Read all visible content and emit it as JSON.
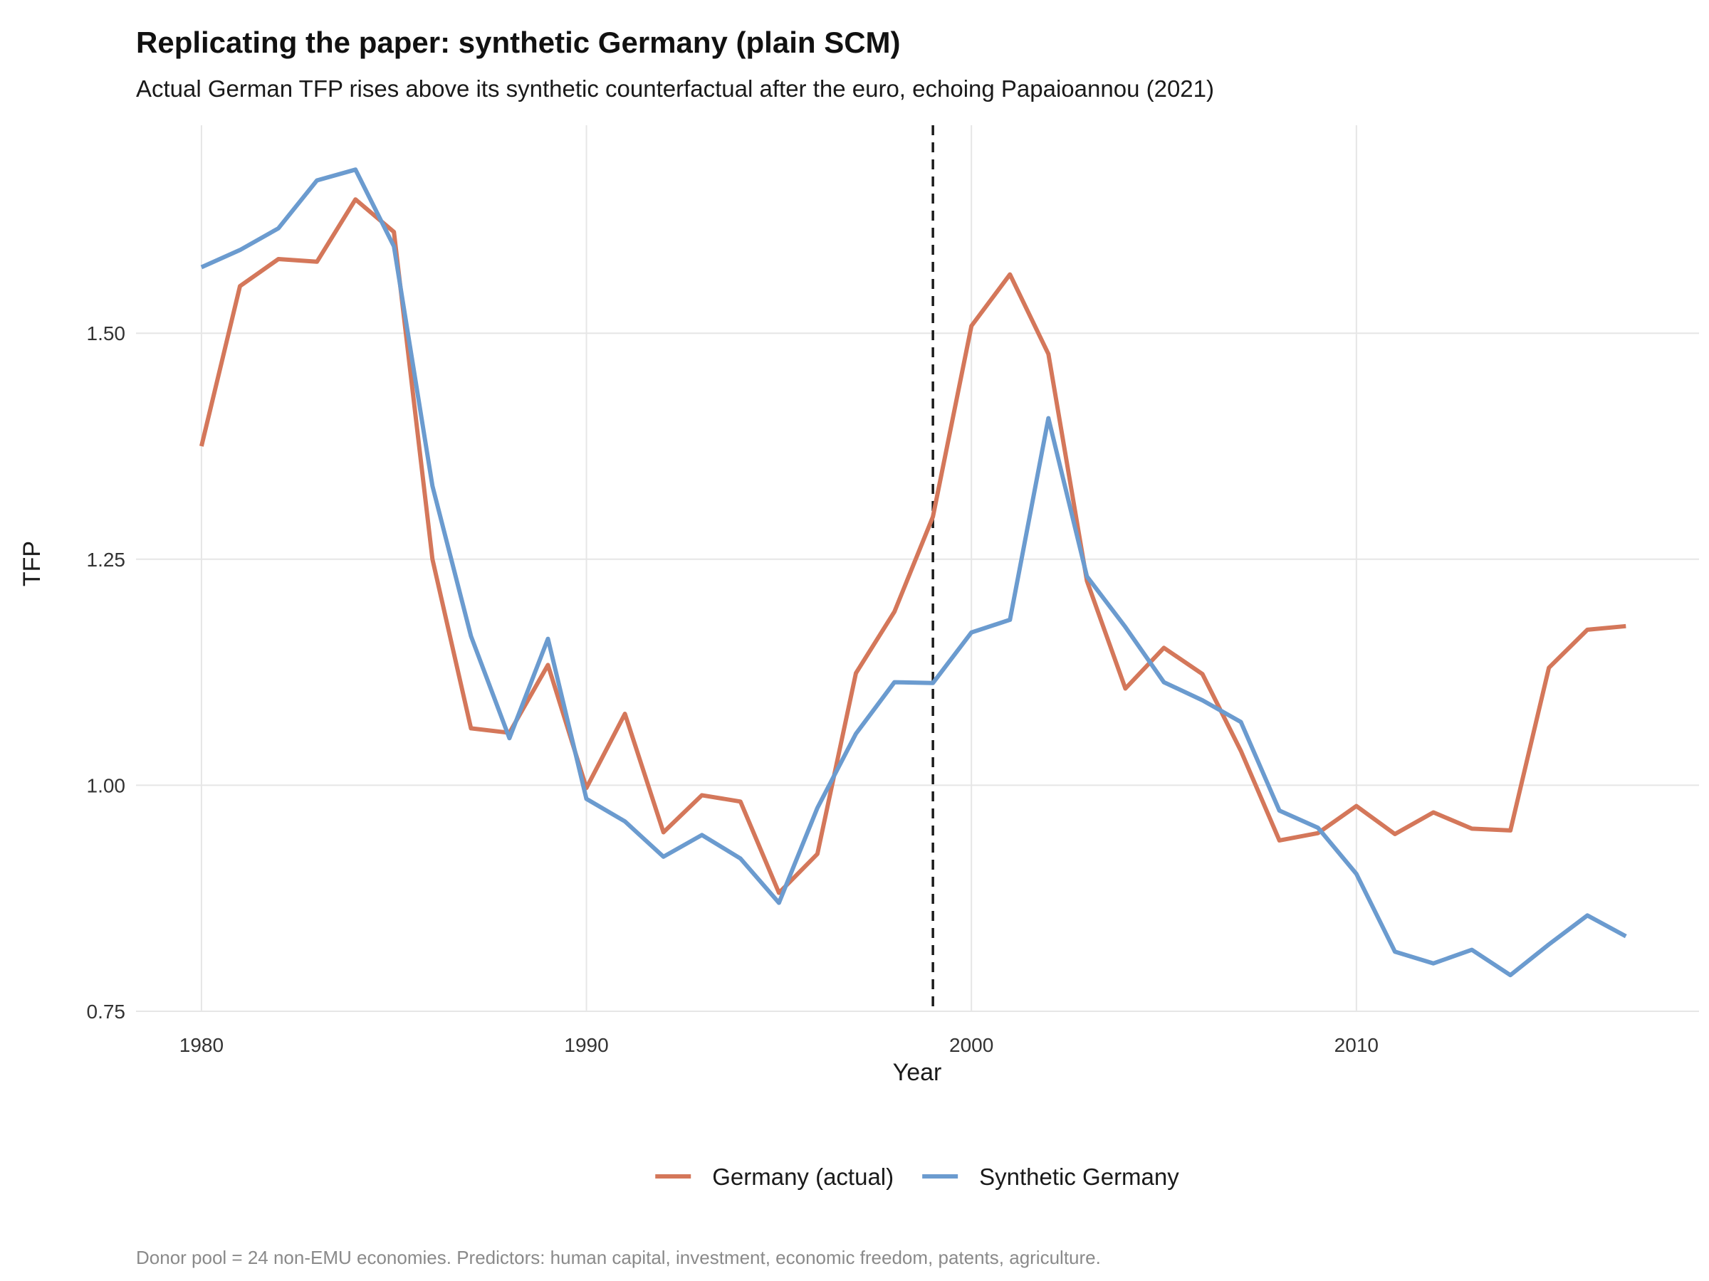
{
  "chart_data": {
    "type": "line",
    "title": "Replicating the paper: synthetic Germany (plain SCM)",
    "subtitle": "Actual German TFP rises above its synthetic counterfactual after the euro, echoing Papaioannou (2021)",
    "caption": "Donor pool = 24 non-EMU economies. Predictors: human capital, investment, economic freedom, patents, agriculture.",
    "xlabel": "Year",
    "ylabel": "TFP",
    "xlim": [
      1978.3,
      2018.9
    ],
    "ylim": [
      0.75,
      1.73
    ],
    "x_ticks": [
      1980,
      1990,
      2000,
      2010
    ],
    "x_tick_labels": [
      "1980",
      "1990",
      "2000",
      "2010"
    ],
    "y_ticks": [
      0.75,
      1.0,
      1.25,
      1.5
    ],
    "y_tick_labels": [
      "0.75",
      "1.00",
      "1.25",
      "1.50"
    ],
    "grid": true,
    "legend_position": "bottom",
    "reference_line": {
      "orientation": "vertical",
      "x": 1999,
      "style": "dashed",
      "color": "#1a1a1a"
    },
    "x": [
      1980,
      1981,
      1982,
      1983,
      1984,
      1985,
      1986,
      1987,
      1988,
      1989,
      1990,
      1991,
      1992,
      1993,
      1994,
      1995,
      1996,
      1997,
      1998,
      1999,
      2000,
      2001,
      2002,
      2003,
      2004,
      2005,
      2006,
      2007,
      2008,
      2009,
      2010,
      2011,
      2012,
      2013,
      2014,
      2015,
      2016,
      2017
    ],
    "series": [
      {
        "name": "Germany (actual)",
        "color": "#d4775a",
        "values": [
          1.375,
          1.552,
          1.582,
          1.579,
          1.648,
          1.612,
          1.25,
          1.063,
          1.058,
          1.133,
          0.997,
          1.079,
          0.948,
          0.989,
          0.982,
          0.881,
          0.924,
          1.124,
          1.192,
          1.297,
          1.508,
          1.565,
          1.477,
          1.226,
          1.107,
          1.152,
          1.123,
          1.038,
          0.939,
          0.947,
          0.977,
          0.946,
          0.97,
          0.952,
          0.95,
          1.13,
          1.172,
          1.176
        ]
      },
      {
        "name": "Synthetic Germany",
        "color": "#6b9bcf",
        "values": [
          1.573,
          1.592,
          1.616,
          1.669,
          1.681,
          1.596,
          1.331,
          1.165,
          1.052,
          1.162,
          0.985,
          0.96,
          0.921,
          0.945,
          0.919,
          0.87,
          0.975,
          1.057,
          1.114,
          1.113,
          1.169,
          1.183,
          1.406,
          1.231,
          1.175,
          1.114,
          1.094,
          1.07,
          0.972,
          0.953,
          0.902,
          0.816,
          0.803,
          0.818,
          0.79,
          0.824,
          0.856,
          0.833
        ]
      }
    ]
  }
}
